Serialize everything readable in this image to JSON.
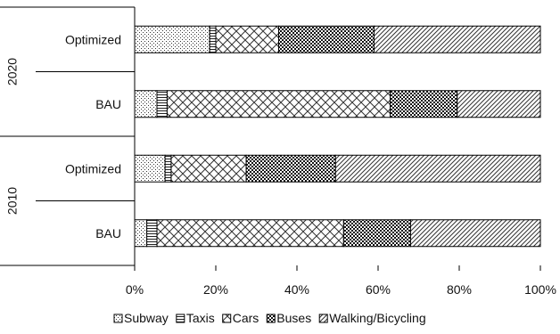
{
  "chart_data": {
    "type": "bar",
    "orientation": "horizontal",
    "stacked": "percent",
    "title": "",
    "xlabel": "",
    "ylabel": "",
    "xlim": [
      0,
      100
    ],
    "x_ticks": [
      "0%",
      "20%",
      "40%",
      "60%",
      "80%",
      "100%"
    ],
    "groups": [
      {
        "label": "2020",
        "categories": [
          "Optimized",
          "BAU"
        ]
      },
      {
        "label": "2010",
        "categories": [
          "Optimized",
          "BAU"
        ]
      }
    ],
    "rows": [
      {
        "group": "2020",
        "category": "Optimized",
        "values": [
          18.5,
          1.5,
          15.5,
          23.5,
          41.0
        ]
      },
      {
        "group": "2020",
        "category": "BAU",
        "values": [
          5.5,
          2.5,
          55.0,
          16.5,
          20.5
        ]
      },
      {
        "group": "2010",
        "category": "Optimized",
        "values": [
          7.5,
          1.5,
          18.5,
          22.0,
          50.5
        ]
      },
      {
        "group": "2010",
        "category": "BAU",
        "values": [
          3.0,
          2.5,
          46.0,
          16.5,
          32.0
        ]
      }
    ],
    "series": [
      {
        "name": "Subway",
        "pattern": "dots"
      },
      {
        "name": "Taxis",
        "pattern": "horizontal-lines"
      },
      {
        "name": "Cars",
        "pattern": "crosshatch"
      },
      {
        "name": "Buses",
        "pattern": "checker"
      },
      {
        "name": "Walking/Bicycling",
        "pattern": "diagonal-lines"
      }
    ],
    "legend_position": "bottom",
    "grid": false
  }
}
